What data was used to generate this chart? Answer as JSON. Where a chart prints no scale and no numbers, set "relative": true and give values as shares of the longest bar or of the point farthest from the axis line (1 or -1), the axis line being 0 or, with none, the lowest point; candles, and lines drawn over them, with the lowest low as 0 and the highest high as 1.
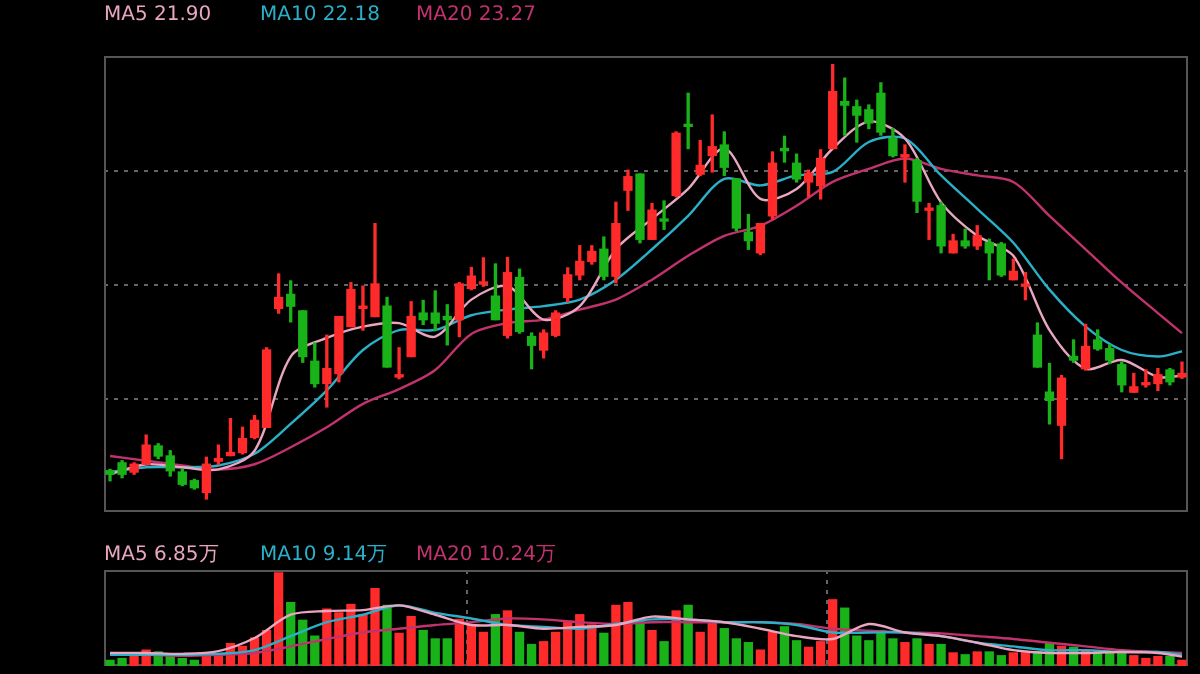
{
  "chart_data": [
    {
      "type": "candlestick",
      "relative": true,
      "grid": "y",
      "legend": "top left",
      "categories": [
        null,
        null,
        null,
        null,
        null,
        null,
        null,
        null,
        null,
        null,
        null,
        null,
        null,
        null,
        null,
        null,
        null,
        null,
        null,
        null,
        null,
        null,
        null,
        null,
        null,
        null,
        null,
        null,
        null,
        null,
        null,
        null,
        null,
        null,
        null,
        null,
        null,
        null,
        null,
        null,
        null,
        null,
        null,
        null,
        null,
        null,
        null,
        null,
        null,
        null,
        null,
        null,
        null,
        null,
        null,
        null,
        null,
        null,
        null,
        null,
        null,
        null,
        null,
        null,
        null,
        null,
        null,
        null,
        null,
        null,
        null,
        null,
        null,
        null,
        null,
        null,
        null,
        null,
        null,
        null,
        null,
        null,
        null,
        null,
        null,
        null,
        null,
        null,
        null,
        null
      ],
      "ohlc": [
        [
          0.065,
          0.068,
          0.042,
          0.057
        ],
        [
          0.083,
          0.088,
          0.049,
          0.057
        ],
        [
          0.062,
          0.083,
          0.057,
          0.08
        ],
        [
          0.08,
          0.147,
          0.08,
          0.124
        ],
        [
          0.122,
          0.127,
          0.093,
          0.099
        ],
        [
          0.099,
          0.111,
          0.053,
          0.065
        ],
        [
          0.062,
          0.068,
          0.031,
          0.034
        ],
        [
          0.042,
          0.045,
          0.023,
          0.026
        ],
        [
          0.015,
          0.096,
          0,
          0.08
        ],
        [
          0.087,
          0.124,
          0.08,
          0.093
        ],
        [
          0.1,
          0.185,
          0.1,
          0.107
        ],
        [
          0.107,
          0.165,
          0.104,
          0.139
        ],
        [
          0.142,
          0.192,
          0.139,
          0.181
        ],
        [
          0.165,
          0.348,
          0.165,
          0.343
        ],
        [
          0.439,
          0.518,
          0.428,
          0.464
        ],
        [
          0.471,
          0.502,
          0.408,
          0.444
        ],
        [
          0.433,
          0.433,
          0.315,
          0.328
        ],
        [
          0.317,
          0.359,
          0.258,
          0.266
        ],
        [
          0.266,
          0.377,
          0.212,
          0.3
        ],
        [
          0.289,
          0.42,
          0.27,
          0.42
        ],
        [
          0.397,
          0.498,
          0.397,
          0.482
        ],
        [
          0.439,
          0.49,
          0.389,
          0.444
        ],
        [
          0.42,
          0.634,
          0.42,
          0.495
        ],
        [
          0.444,
          0.464,
          0.304,
          0.304
        ],
        [
          0.281,
          0.348,
          0.277,
          0.286
        ],
        [
          0.328,
          0.454,
          0.328,
          0.42
        ],
        [
          0.428,
          0.457,
          0.402,
          0.413
        ],
        [
          0.428,
          0.479,
          0.389,
          0.405
        ],
        [
          0.42,
          0.447,
          0.355,
          0.413
        ],
        [
          0.413,
          0.498,
          0.374,
          0.495
        ],
        [
          0.485,
          0.533,
          0.482,
          0.513
        ],
        [
          0.495,
          0.555,
          0.49,
          0.498
        ],
        [
          0.467,
          0.541,
          0.413,
          0.413
        ],
        [
          0.377,
          0.556,
          0.371,
          0.521
        ],
        [
          0.51,
          0.529,
          0.382,
          0.386
        ],
        [
          0.374,
          0.382,
          0.3,
          0.354
        ],
        [
          0.343,
          0.389,
          0.325,
          0.382
        ],
        [
          0.377,
          0.433,
          0.374,
          0.428
        ],
        [
          0.464,
          0.532,
          0.454,
          0.516
        ],
        [
          0.516,
          0.583,
          0.505,
          0.547
        ],
        [
          0.547,
          0.583,
          0.541,
          0.57
        ],
        [
          0.575,
          0.603,
          0.505,
          0.513
        ],
        [
          0.513,
          0.683,
          0.498,
          0.634
        ],
        [
          0.711,
          0.757,
          0.665,
          0.742
        ],
        [
          0.748,
          0.748,
          0.59,
          0.598
        ],
        [
          0.598,
          0.68,
          0.598,
          0.665
        ],
        [
          0.641,
          0.686,
          0.621,
          0.64
        ],
        [
          0.699,
          0.845,
          0.696,
          0.842
        ],
        [
          0.861,
          0.934,
          0.807,
          0.858
        ],
        [
          0.748,
          0.825,
          0.745,
          0.768
        ],
        [
          0.791,
          0.884,
          0.753,
          0.811
        ],
        [
          0.815,
          0.845,
          0.745,
          0.764
        ],
        [
          0.737,
          0.737,
          0.618,
          0.624
        ],
        [
          0.614,
          0.655,
          0.575,
          0.595
        ],
        [
          0.567,
          0.634,
          0.563,
          0.634
        ],
        [
          0.652,
          0.799,
          0.645,
          0.773
        ],
        [
          0.807,
          0.835,
          0.776,
          0.802
        ],
        [
          0.773,
          0.794,
          0.73,
          0.737
        ],
        [
          0.73,
          0.757,
          0.696,
          0.75
        ],
        [
          0.722,
          0.804,
          0.691,
          0.784
        ],
        [
          0.807,
          1,
          0.807,
          0.938
        ],
        [
          0.915,
          0.969,
          0.838,
          0.907
        ],
        [
          0.903,
          0.918,
          0.822,
          0.884
        ],
        [
          0.896,
          0.907,
          0.853,
          0.866
        ],
        [
          0.934,
          0.958,
          0.838,
          0.845
        ],
        [
          0.83,
          0.853,
          0.788,
          0.791
        ],
        [
          0.788,
          0.815,
          0.73,
          0.791
        ],
        [
          0.779,
          0.784,
          0.66,
          0.686
        ],
        [
          0.665,
          0.68,
          0.598,
          0.668
        ],
        [
          0.675,
          0.683,
          0.567,
          0.583
        ],
        [
          0.567,
          0.609,
          0.567,
          0.594
        ],
        [
          0.594,
          0.621,
          0.578,
          0.583
        ],
        [
          0.583,
          0.629,
          0.575,
          0.606
        ],
        [
          0.59,
          0.598,
          0.505,
          0.567
        ],
        [
          0.587,
          0.59,
          0.513,
          0.516
        ],
        [
          0.505,
          0.552,
          0.505,
          0.524
        ],
        [
          0.49,
          0.521,
          0.459,
          0.493
        ],
        [
          0.377,
          0.405,
          0.304,
          0.304
        ],
        [
          0.246,
          0.312,
          0.173,
          0.227
        ],
        [
          0.17,
          0.284,
          0.093,
          0.278
        ],
        [
          0.328,
          0.366,
          0.315,
          0.32
        ],
        [
          0.3,
          0.402,
          0.297,
          0.351
        ],
        [
          0.366,
          0.389,
          0.343,
          0.346
        ],
        [
          0.346,
          0.355,
          0.312,
          0.32
        ],
        [
          0.309,
          0.315,
          0.247,
          0.263
        ],
        [
          0.246,
          0.289,
          0.246,
          0.258
        ],
        [
          0.263,
          0.297,
          0.258,
          0.266
        ],
        [
          0.266,
          0.3,
          0.25,
          0.286
        ],
        [
          0.297,
          0.3,
          0.263,
          0.27
        ],
        [
          0.281,
          0.315,
          0.278,
          0.289
        ]
      ],
      "colors": [
        "#19b319",
        "#19b319",
        "#ff2a2a",
        "#ff2a2a",
        "#19b319",
        "#19b319",
        "#19b319",
        "#19b319",
        "#ff2a2a",
        "#ff2a2a",
        "#ff2a2a",
        "#ff2a2a",
        "#ff2a2a",
        "#ff2a2a",
        "#ff2a2a",
        "#19b319",
        "#19b319",
        "#19b319",
        "#ff2a2a",
        "#ff2a2a",
        "#ff2a2a",
        "#ff2a2a",
        "#ff2a2a",
        "#19b319",
        "#ff2a2a",
        "#ff2a2a",
        "#19b319",
        "#19b319",
        "#19b319",
        "#ff2a2a",
        "#ff2a2a",
        "#ff2a2a",
        "#19b319",
        "#ff2a2a",
        "#19b319",
        "#19b319",
        "#ff2a2a",
        "#ff2a2a",
        "#ff2a2a",
        "#ff2a2a",
        "#ff2a2a",
        "#19b319",
        "#ff2a2a",
        "#ff2a2a",
        "#19b319",
        "#ff2a2a",
        "#19b319",
        "#ff2a2a",
        "#19b319",
        "#ff2a2a",
        "#ff2a2a",
        "#19b319",
        "#19b319",
        "#19b319",
        "#ff2a2a",
        "#ff2a2a",
        "#19b319",
        "#19b319",
        "#ff2a2a",
        "#ff2a2a",
        "#ff2a2a",
        "#19b319",
        "#19b319",
        "#19b319",
        "#19b319",
        "#19b319",
        "#ff2a2a",
        "#19b319",
        "#ff2a2a",
        "#19b319",
        "#ff2a2a",
        "#19b319",
        "#ff2a2a",
        "#19b319",
        "#19b319",
        "#ff2a2a",
        "#ff2a2a",
        "#19b319",
        "#19b319",
        "#ff2a2a",
        "#19b319",
        "#ff2a2a",
        "#19b319",
        "#19b319",
        "#19b319",
        "#ff2a2a",
        "#ff2a2a",
        "#ff2a2a",
        "#19b319",
        "#ff2a2a"
      ],
      "series": [
        {
          "name": "MA5 21.90",
          "type": "line",
          "color": "#e8a6c0",
          "values": [
            0.057,
            null,
            null,
            0.08,
            null,
            null,
            0.073,
            null,
            null,
            0.068,
            null,
            null,
            0.111,
            null,
            null,
            0.328,
            null,
            null,
            0.371,
            null,
            null,
            0.397,
            null,
            null,
            0.405,
            null,
            null,
            0.374,
            null,
            null,
            0.459,
            null,
            null,
            0.49,
            null,
            null,
            0.413,
            null,
            null,
            0.444,
            null,
            null,
            0.575,
            null,
            null,
            0.645,
            null,
            null,
            0.714,
            null,
            null,
            0.807,
            null,
            null,
            0.691,
            null,
            null,
            0.714,
            null,
            null,
            0.807,
            null,
            null,
            0.869,
            null,
            null,
            0.83,
            null,
            null,
            0.683,
            null,
            null,
            0.606,
            null,
            null,
            0.56,
            null,
            null,
            0.389,
            null,
            null,
            0.3,
            null,
            null,
            0.32,
            null,
            null,
            0.281,
            null,
            0.284
          ]
        },
        {
          "name": "MA10 22.18",
          "type": "line",
          "color": "#2ab0c8",
          "values": [
            0.062,
            null,
            null,
            0.073,
            null,
            null,
            0.073,
            null,
            null,
            0.077,
            null,
            null,
            0.104,
            null,
            null,
            0.173,
            null,
            null,
            0.25,
            null,
            null,
            0.343,
            null,
            null,
            0.389,
            null,
            null,
            0.389,
            null,
            null,
            0.423,
            null,
            null,
            0.436,
            null,
            null,
            0.444,
            null,
            null,
            0.459,
            null,
            null,
            0.505,
            null,
            null,
            0.575,
            null,
            null,
            0.652,
            null,
            null,
            0.737,
            null,
            null,
            0.722,
            null,
            null,
            0.745,
            null,
            null,
            0.753,
            null,
            null,
            0.822,
            null,
            null,
            0.83,
            null,
            null,
            0.745,
            null,
            null,
            0.668,
            null,
            null,
            0.59,
            null,
            null,
            0.482,
            null,
            null,
            0.397,
            null,
            null,
            0.343,
            null,
            null,
            0.328,
            null,
            0.34
          ]
        },
        {
          "name": "MA20 23.27",
          "type": "line",
          "color": "#c2336e",
          "values": [
            0.099,
            null,
            null,
            0.088,
            null,
            null,
            0.077,
            null,
            null,
            0.068,
            null,
            null,
            0.08,
            null,
            null,
            0.119,
            null,
            null,
            0.165,
            null,
            null,
            0.219,
            null,
            null,
            0.253,
            null,
            null,
            0.297,
            null,
            null,
            0.38,
            null,
            null,
            0.405,
            null,
            null,
            0.413,
            null,
            null,
            0.436,
            null,
            null,
            0.459,
            null,
            null,
            0.505,
            null,
            null,
            0.56,
            null,
            null,
            0.606,
            null,
            null,
            0.629,
            null,
            null,
            0.675,
            null,
            null,
            0.73,
            null,
            null,
            0.76,
            null,
            null,
            0.784,
            null,
            null,
            0.76,
            null,
            null,
            0.745,
            null,
            null,
            0.73,
            null,
            null,
            0.652,
            null,
            null,
            0.575,
            null,
            null,
            0.498,
            null,
            null,
            0.428,
            null,
            0.382
          ]
        }
      ]
    },
    {
      "type": "bar",
      "relative": true,
      "grid": "x",
      "legend": "top left",
      "categories": [
        null,
        null,
        null,
        null,
        null,
        null,
        null,
        null,
        null,
        null,
        null,
        null,
        null,
        null,
        null,
        null,
        null,
        null,
        null,
        null,
        null,
        null,
        null,
        null,
        null,
        null,
        null,
        null,
        null,
        null,
        null,
        null,
        null,
        null,
        null,
        null,
        null,
        null,
        null,
        null,
        null,
        null,
        null,
        null,
        null,
        null,
        null,
        null,
        null,
        null,
        null,
        null,
        null,
        null,
        null,
        null,
        null,
        null,
        null,
        null,
        null,
        null,
        null,
        null,
        null,
        null,
        null,
        null,
        null,
        null,
        null,
        null,
        null,
        null,
        null,
        null,
        null,
        null,
        null,
        null,
        null,
        null,
        null,
        null,
        null,
        null,
        null,
        null,
        null,
        null
      ],
      "values": [
        0.06,
        0.08,
        0.1,
        0.17,
        0.15,
        0.1,
        0.08,
        0.06,
        0.14,
        0.12,
        0.24,
        0.21,
        0.3,
        0.38,
        1,
        0.68,
        0.49,
        0.32,
        0.61,
        0.57,
        0.66,
        0.55,
        0.83,
        0.65,
        0.35,
        0.53,
        0.38,
        0.29,
        0.29,
        0.5,
        0.44,
        0.36,
        0.55,
        0.59,
        0.36,
        0.23,
        0.26,
        0.36,
        0.48,
        0.55,
        0.44,
        0.35,
        0.65,
        0.68,
        0.5,
        0.38,
        0.26,
        0.59,
        0.65,
        0.36,
        0.47,
        0.4,
        0.29,
        0.25,
        0.17,
        0.36,
        0.42,
        0.27,
        0.2,
        0.26,
        0.71,
        0.62,
        0.32,
        0.27,
        0.38,
        0.29,
        0.25,
        0.29,
        0.23,
        0.23,
        0.14,
        0.12,
        0.15,
        0.15,
        0.11,
        0.14,
        0.14,
        0.15,
        0.25,
        0.21,
        0.2,
        0.17,
        0.15,
        0.14,
        0.16,
        0.11,
        0.08,
        0.1,
        0.1,
        0.06
      ],
      "colors": [
        "#19b319",
        "#19b319",
        "#ff2a2a",
        "#ff2a2a",
        "#19b319",
        "#19b319",
        "#19b319",
        "#19b319",
        "#ff2a2a",
        "#ff2a2a",
        "#ff2a2a",
        "#ff2a2a",
        "#ff2a2a",
        "#ff2a2a",
        "#ff2a2a",
        "#19b319",
        "#19b319",
        "#19b319",
        "#ff2a2a",
        "#ff2a2a",
        "#ff2a2a",
        "#ff2a2a",
        "#ff2a2a",
        "#19b319",
        "#ff2a2a",
        "#ff2a2a",
        "#19b319",
        "#19b319",
        "#19b319",
        "#ff2a2a",
        "#ff2a2a",
        "#ff2a2a",
        "#19b319",
        "#ff2a2a",
        "#19b319",
        "#19b319",
        "#ff2a2a",
        "#ff2a2a",
        "#ff2a2a",
        "#ff2a2a",
        "#ff2a2a",
        "#19b319",
        "#ff2a2a",
        "#ff2a2a",
        "#19b319",
        "#ff2a2a",
        "#19b319",
        "#ff2a2a",
        "#19b319",
        "#ff2a2a",
        "#ff2a2a",
        "#19b319",
        "#19b319",
        "#19b319",
        "#ff2a2a",
        "#ff2a2a",
        "#19b319",
        "#19b319",
        "#ff2a2a",
        "#ff2a2a",
        "#ff2a2a",
        "#19b319",
        "#19b319",
        "#19b319",
        "#19b319",
        "#19b319",
        "#ff2a2a",
        "#19b319",
        "#ff2a2a",
        "#19b319",
        "#ff2a2a",
        "#19b319",
        "#ff2a2a",
        "#19b319",
        "#19b319",
        "#ff2a2a",
        "#ff2a2a",
        "#19b319",
        "#19b319",
        "#ff2a2a",
        "#19b319",
        "#ff2a2a",
        "#19b319",
        "#19b319",
        "#19b319",
        "#ff2a2a",
        "#ff2a2a",
        "#ff2a2a",
        "#19b319",
        "#ff2a2a"
      ],
      "series": [
        {
          "name": "MA5 6.85万",
          "type": "line",
          "color": "#e8a6c0",
          "values": [
            0.14,
            null,
            null,
            0.14,
            null,
            null,
            0.13,
            null,
            null,
            0.16,
            null,
            null,
            0.3,
            null,
            null,
            0.55,
            null,
            null,
            0.59,
            null,
            null,
            0.6,
            null,
            null,
            0.65,
            null,
            null,
            0.55,
            null,
            null,
            0.44,
            null,
            null,
            0.44,
            null,
            null,
            0.4,
            null,
            null,
            0.42,
            null,
            null,
            0.44,
            null,
            null,
            0.53,
            null,
            null,
            0.5,
            null,
            null,
            0.47,
            null,
            null,
            0.4,
            null,
            null,
            0.32,
            null,
            null,
            0.29,
            null,
            null,
            0.45,
            null,
            null,
            0.36,
            null,
            null,
            0.32,
            null,
            null,
            0.25,
            null,
            null,
            0.17,
            null,
            null,
            0.14,
            null,
            null,
            0.14,
            null,
            null,
            0.15,
            null,
            null,
            0.14,
            null,
            0.1
          ]
        },
        {
          "name": "MA10 9.14万",
          "type": "line",
          "color": "#2ab0c8",
          "values": [
            0.12,
            null,
            null,
            0.12,
            null,
            null,
            0.12,
            null,
            null,
            0.13,
            null,
            null,
            0.17,
            null,
            null,
            0.32,
            null,
            null,
            0.47,
            null,
            null,
            0.55,
            null,
            null,
            0.65,
            null,
            null,
            0.57,
            null,
            null,
            0.51,
            null,
            null,
            0.44,
            null,
            null,
            0.42,
            null,
            null,
            0.4,
            null,
            null,
            0.45,
            null,
            null,
            0.5,
            null,
            null,
            0.5,
            null,
            null,
            0.47,
            null,
            null,
            0.47,
            null,
            null,
            0.44,
            null,
            null,
            0.36,
            null,
            null,
            0.36,
            null,
            null,
            0.36,
            null,
            null,
            0.32,
            null,
            null,
            0.25,
            null,
            null,
            0.21,
            null,
            null,
            0.17,
            null,
            null,
            0.17,
            null,
            null,
            0.15,
            null,
            null,
            0.15,
            null,
            0.12
          ]
        },
        {
          "name": "MA20 10.24万",
          "type": "line",
          "color": "#c2336e",
          "values": [
            0.12,
            null,
            null,
            0.12,
            null,
            null,
            0.11,
            null,
            null,
            0.12,
            null,
            null,
            0.14,
            null,
            null,
            0.21,
            null,
            null,
            0.29,
            null,
            null,
            0.36,
            null,
            null,
            0.4,
            null,
            null,
            0.44,
            null,
            null,
            0.47,
            null,
            null,
            0.51,
            null,
            null,
            0.5,
            null,
            null,
            0.47,
            null,
            null,
            0.45,
            null,
            null,
            0.47,
            null,
            null,
            0.47,
            null,
            null,
            0.47,
            null,
            null,
            0.47,
            null,
            null,
            0.45,
            null,
            null,
            0.4,
            null,
            null,
            0.38,
            null,
            null,
            0.36,
            null,
            null,
            0.35,
            null,
            null,
            0.32,
            null,
            null,
            0.29,
            null,
            null,
            0.25,
            null,
            null,
            0.21,
            null,
            null,
            0.17,
            null,
            null,
            0.15,
            null,
            0.14
          ]
        }
      ]
    }
  ]
}
